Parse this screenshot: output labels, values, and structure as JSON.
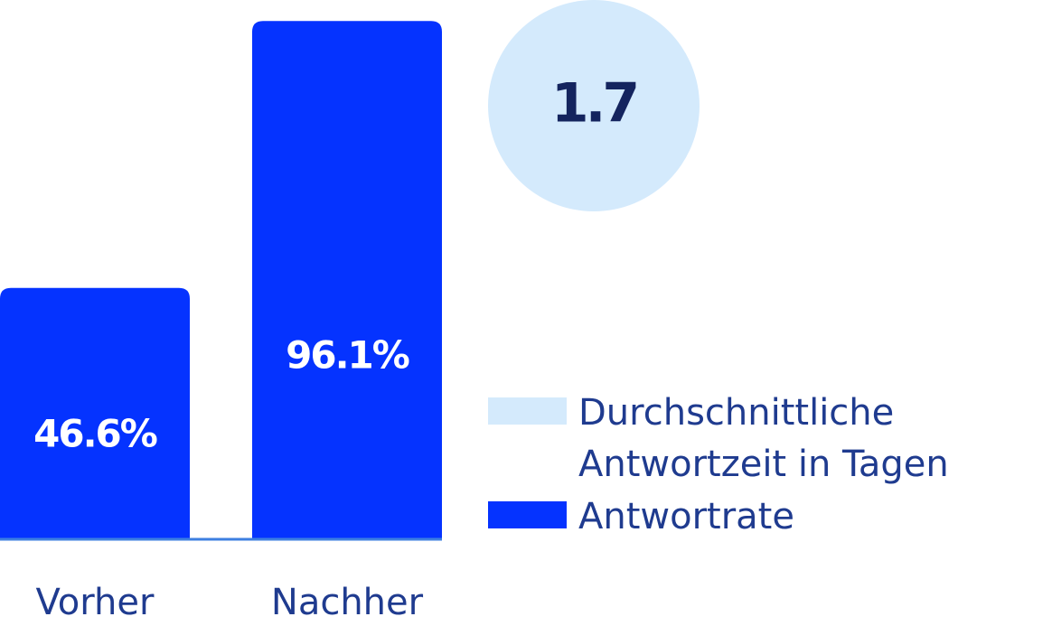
{
  "chart_data": {
    "type": "bar",
    "categories": [
      "Vorher",
      "Nachher"
    ],
    "series": [
      {
        "name": "Antwortrate",
        "values": [
          46.6,
          96.1
        ],
        "value_labels": [
          "46.6%",
          "96.1%"
        ],
        "color": "#0533ff"
      }
    ],
    "ylim": [
      0,
      100
    ],
    "grid": false,
    "highlight": {
      "name_lines": [
        "Durchschnittliche",
        "Antwortzeit in Tagen"
      ],
      "value": 1.7,
      "value_label": "1.7",
      "color": "#d4eafc"
    },
    "legend": {
      "placement": "right",
      "entries": [
        {
          "lines": [
            "Durchschnittliche",
            "Antwortzeit in Tagen"
          ],
          "color": "#d4eafc"
        },
        {
          "lines": [
            "Antwortrate"
          ],
          "color": "#0533ff"
        }
      ]
    }
  },
  "colors": {
    "bar": "#0533ff",
    "bubble": "#d4eafc",
    "baseline": "#3d7fe0",
    "text": "#1f3b8f",
    "bubble_text": "#14245e"
  }
}
